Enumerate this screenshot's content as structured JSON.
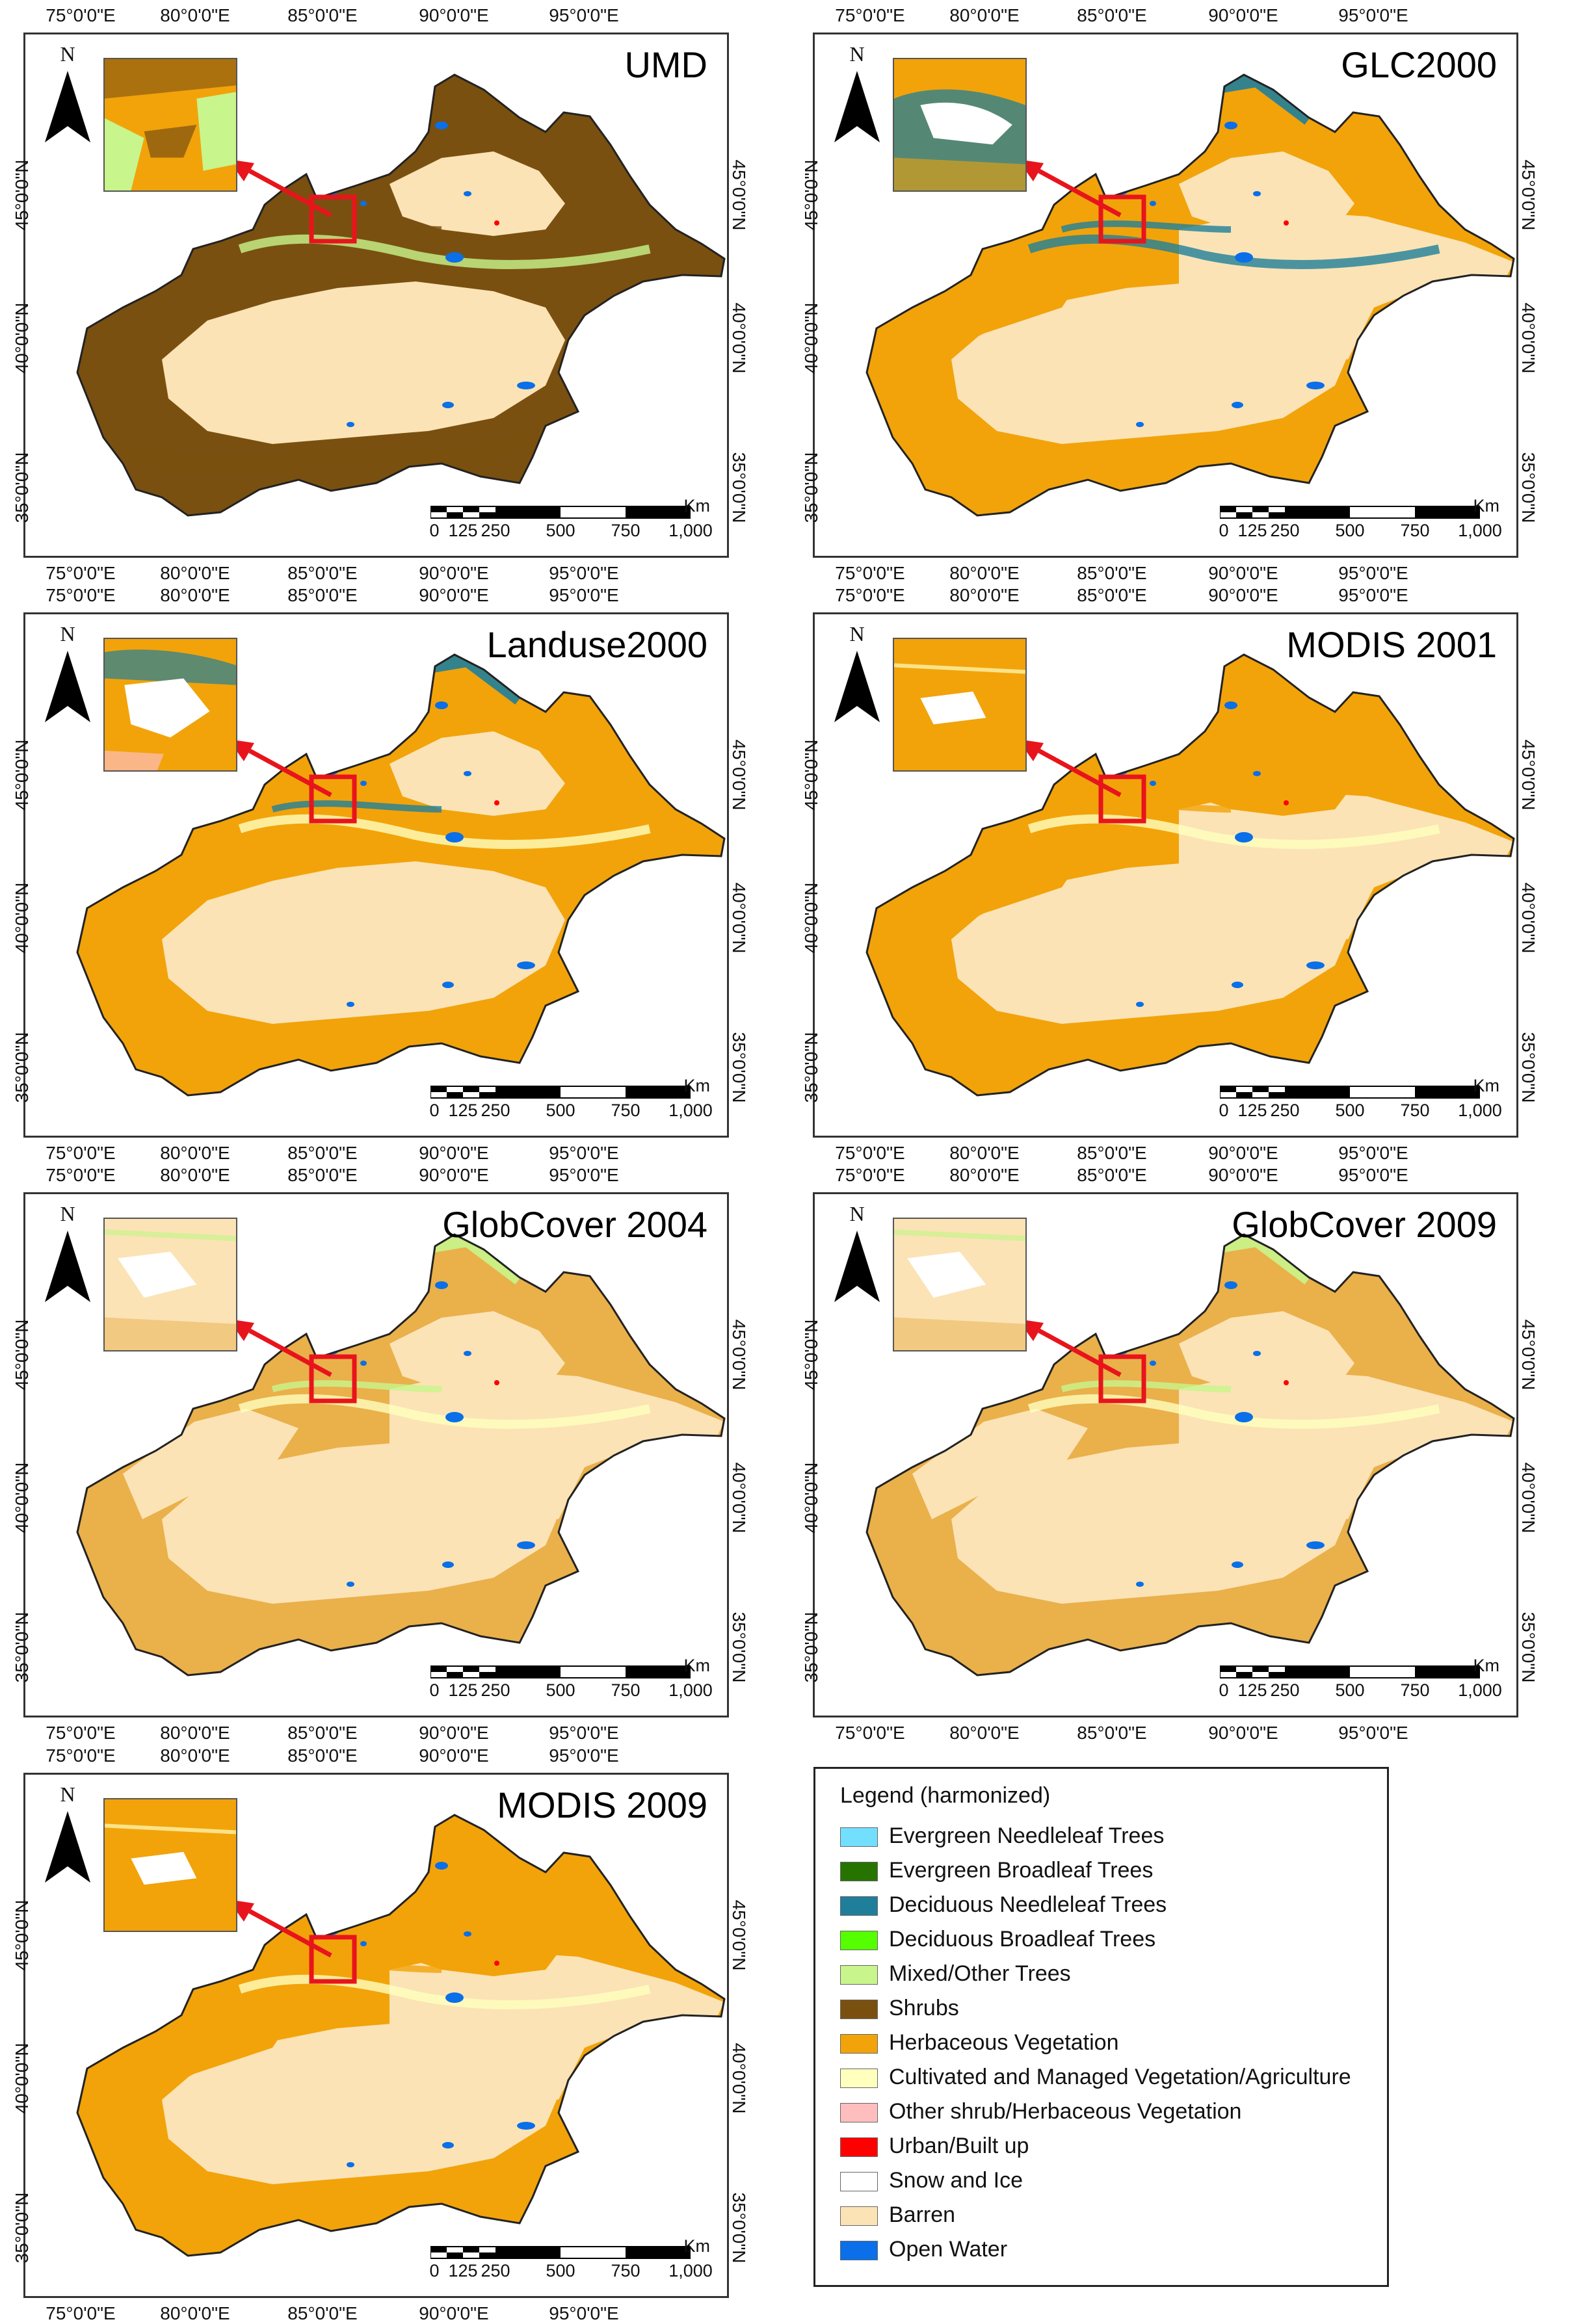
{
  "axes": {
    "lon_labels": [
      "75°0'0\"E",
      "80°0'0\"E",
      "85°0'0\"E",
      "90°0'0\"E",
      "95°0'0\"E"
    ],
    "lat_labels": [
      "45°0'0\"N",
      "40°0'0\"N",
      "35°0'0\"N"
    ]
  },
  "north_label": "N",
  "scale": {
    "unit": "Km",
    "labels": [
      "0",
      "125",
      "250",
      "500",
      "750",
      "1,000"
    ]
  },
  "panels": [
    {
      "title": "UMD",
      "scheme": "umd"
    },
    {
      "title": "GLC2000",
      "scheme": "glc"
    },
    {
      "title": "Landuse2000",
      "scheme": "landuse"
    },
    {
      "title": "MODIS 2001",
      "scheme": "modis"
    },
    {
      "title": "GlobCover 2004",
      "scheme": "globcover"
    },
    {
      "title": "GlobCover 2009",
      "scheme": "globcover"
    },
    {
      "title": "MODIS 2009",
      "scheme": "modis"
    }
  ],
  "legend": {
    "title": "Legend (harmonized)",
    "items": [
      {
        "label": "Evergreen Needleleaf Trees",
        "color": "#73dfff"
      },
      {
        "label": "Evergreen Broadleaf Trees",
        "color": "#267300"
      },
      {
        "label": "Deciduous Needleleaf Trees",
        "color": "#1f7f9a"
      },
      {
        "label": "Deciduous Broadleaf Trees",
        "color": "#55ff00"
      },
      {
        "label": "Mixed/Other Trees",
        "color": "#c8f58c"
      },
      {
        "label": "Shrubs",
        "color": "#7a5010"
      },
      {
        "label": "Herbaceous Vegetation",
        "color": "#f2a30a"
      },
      {
        "label": "Cultivated and Managed Vegetation/Agriculture",
        "color": "#ffffbe"
      },
      {
        "label": "Other shrub/Herbaceous Vegetation",
        "color": "#ffbebe"
      },
      {
        "label": "Urban/Built up",
        "color": "#ff0000"
      },
      {
        "label": "Snow and Ice",
        "color": "#ffffff"
      },
      {
        "label": "Barren",
        "color": "#fbe3b6"
      },
      {
        "label": "Open Water",
        "color": "#0a6fe8"
      }
    ]
  },
  "colors": {
    "barren": "#fbe3b6",
    "herb": "#f2a30a",
    "shrubs": "#7a5010",
    "agri": "#ffffbe",
    "water": "#0a6fe8",
    "snow": "#ffffff",
    "mixed": "#c8f58c",
    "decidneedle": "#1f7f9a",
    "urban": "#ff0000",
    "highlight": "#e8141c"
  }
}
